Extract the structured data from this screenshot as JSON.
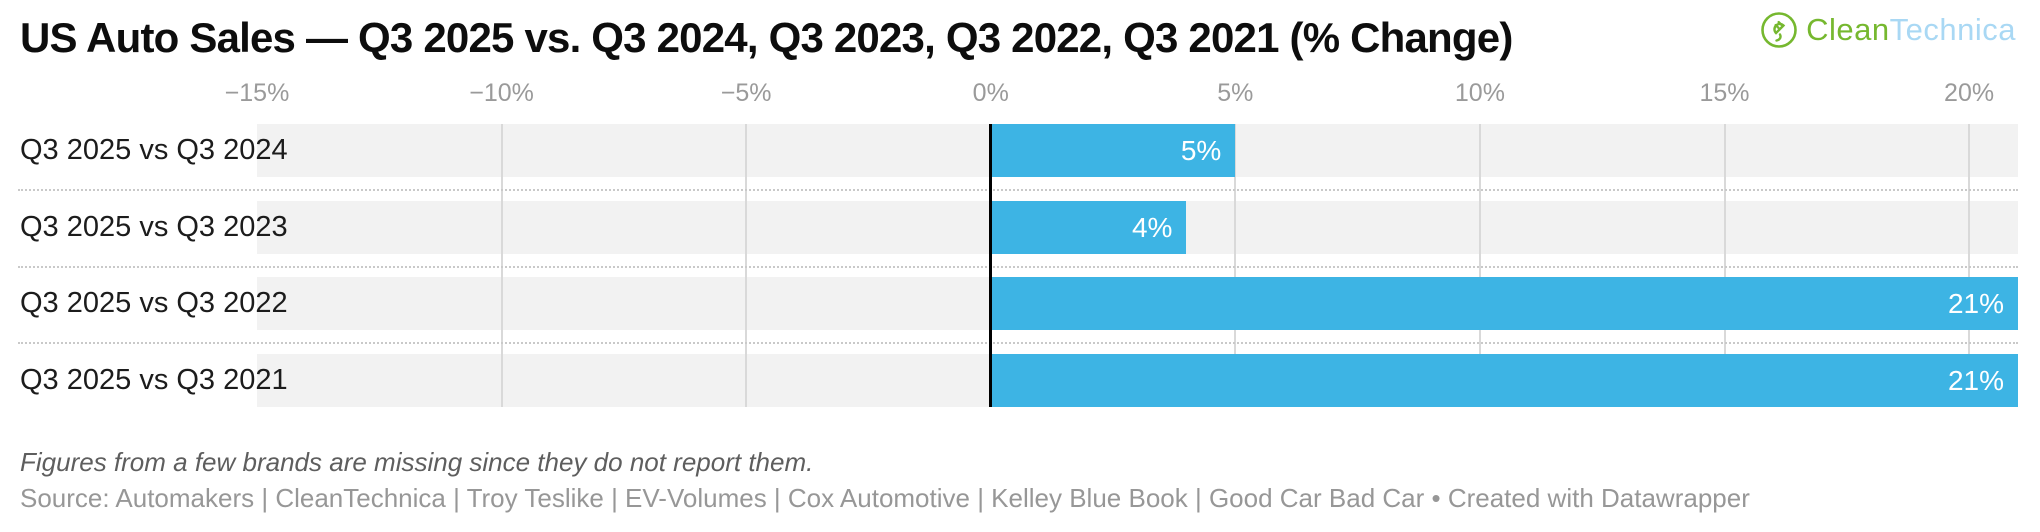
{
  "header": {
    "logo": {
      "name": "CleanTechnica",
      "part1": "Clean",
      "part2": "Technica",
      "green": "#76b82f",
      "blue": "#a9d8f4"
    }
  },
  "chart_data": {
    "type": "bar",
    "orientation": "horizontal",
    "title": "US Auto Sales — Q3 2025 vs. Q3 2024, Q3 2023, Q3 2022, Q3 2021 (% Change)",
    "categories": [
      "Q3 2025 vs Q3 2024",
      "Q3 2025 vs Q3 2023",
      "Q3 2025 vs Q3 2022",
      "Q3 2025 vs Q3 2021"
    ],
    "values": [
      5,
      4,
      21,
      21
    ],
    "value_labels": [
      "5%",
      "4%",
      "21%",
      "21%"
    ],
    "unit": "%",
    "xlim": [
      -15,
      21
    ],
    "x_ticks": [
      {
        "value": -15,
        "label": "−15%"
      },
      {
        "value": -10,
        "label": "−10%"
      },
      {
        "value": -5,
        "label": "−5%"
      },
      {
        "value": 0,
        "label": "0%"
      },
      {
        "value": 5,
        "label": "5%"
      },
      {
        "value": 10,
        "label": "10%"
      },
      {
        "value": 15,
        "label": "15%"
      },
      {
        "value": 20,
        "label": "20%"
      }
    ],
    "bar_color": "#3db4e4",
    "band_color": "#f2f2f2",
    "grid_color": "#d9d9d9",
    "zero_line_color": "#000000",
    "gridlines": true,
    "legend": "none"
  },
  "footer": {
    "note": "Figures from a few brands are missing since they do not report them.",
    "source_prefix": "Source: Automakers | CleanTechnica | Troy Teslike | EV-Volumes | Cox Automotive | Kelley Blue Book | Good Car Bad Car • ",
    "attribution": "Created with Datawrapper"
  }
}
